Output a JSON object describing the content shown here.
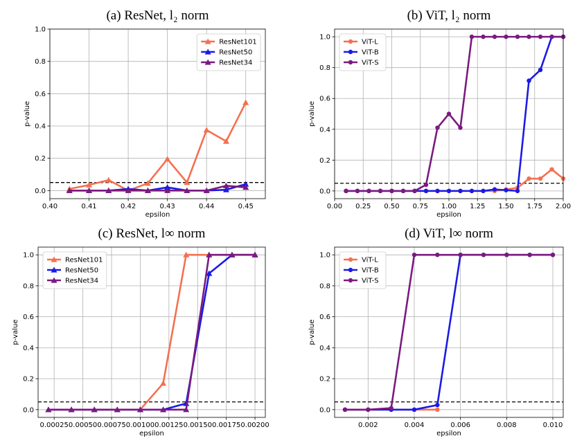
{
  "chart_data": [
    {
      "type": "line",
      "title": "(a) ResNet, l₂ norm",
      "xlabel": "epsilon",
      "ylabel": "p-value",
      "x": [
        0.405,
        0.41,
        0.415,
        0.42,
        0.425,
        0.43,
        0.435,
        0.44,
        0.445,
        0.45
      ],
      "series": [
        {
          "name": "ResNet101",
          "color": "#f4704f",
          "marker": "^",
          "values": [
            0.01,
            0.035,
            0.065,
            0.0,
            0.045,
            0.195,
            0.05,
            0.375,
            0.305,
            0.545
          ]
        },
        {
          "name": "ResNet50",
          "color": "#1a1ae6",
          "marker": "^",
          "values": [
            0,
            0,
            0,
            0.01,
            0,
            0.02,
            0,
            0,
            0.005,
            0.04
          ]
        },
        {
          "name": "ResNet34",
          "color": "#7a1a80",
          "marker": "^",
          "values": [
            0,
            0,
            0,
            0,
            0,
            0,
            0,
            0,
            0.03,
            0.02
          ]
        }
      ],
      "xlim": [
        0.4,
        0.455
      ],
      "xticks": [
        {
          "value": 0.4,
          "label": "0.40"
        },
        0.41,
        0.42,
        0.43,
        0.44,
        0.45
      ],
      "ylim": [
        -0.05,
        1.0
      ],
      "yticks": [
        {
          "value": 0,
          "label": "0.0"
        },
        0.2,
        0.4,
        0.6,
        0.8,
        {
          "value": 1,
          "label": "1.0"
        }
      ],
      "hline": 0.05,
      "grid": true,
      "legend": "upper right"
    },
    {
      "type": "line",
      "title": "(b) ViT, l₂ norm",
      "xlabel": "epsilon",
      "ylabel": "p-value",
      "x": [
        0.1,
        0.2,
        0.3,
        0.4,
        0.5,
        0.6,
        0.7,
        0.8,
        0.9,
        1.0,
        1.1,
        1.2,
        1.3,
        1.4,
        1.5,
        1.6,
        1.7,
        1.8,
        1.9,
        2.0
      ],
      "series": [
        {
          "name": "ViT-L",
          "color": "#f4704f",
          "marker": "o",
          "values": [
            0,
            0,
            0,
            0,
            0,
            0,
            0,
            0,
            0,
            0,
            0,
            0,
            0,
            0,
            0.01,
            0.02,
            0.08,
            0.08,
            0.14,
            0.08
          ]
        },
        {
          "name": "ViT-B",
          "color": "#1a1ae6",
          "marker": "o",
          "values": [
            0,
            0,
            0,
            0,
            0,
            0,
            0,
            0,
            0,
            0,
            0,
            0,
            0,
            0.01,
            0.005,
            0,
            0.715,
            0.785,
            1,
            1
          ]
        },
        {
          "name": "ViT-S",
          "color": "#7a1a80",
          "marker": "o",
          "values": [
            0,
            0,
            0,
            0,
            0,
            0,
            0,
            0.04,
            0.41,
            0.5,
            0.41,
            1,
            1,
            1,
            1,
            1,
            1,
            1,
            1,
            1
          ]
        }
      ],
      "xlim": [
        0,
        2
      ],
      "xticks": [
        {
          "value": 0,
          "label": "0.00"
        },
        0.25,
        {
          "value": 0.5,
          "label": "0.50"
        },
        0.75,
        {
          "value": 1,
          "label": "1.00"
        },
        1.25,
        {
          "value": 1.5,
          "label": "1.50"
        },
        1.75,
        {
          "value": 2,
          "label": "2.00"
        }
      ],
      "ylim": [
        -0.05,
        1.05
      ],
      "yticks": [
        {
          "value": 0,
          "label": "0.0"
        },
        0.2,
        0.4,
        0.6,
        0.8,
        {
          "value": 1,
          "label": "1.0"
        }
      ],
      "hline": 0.05,
      "grid": true,
      "legend": "upper left"
    },
    {
      "type": "line",
      "title": "(c) ResNet, l∞ norm",
      "xlabel": "epsilon",
      "ylabel": "p-value",
      "x": [
        0.0002,
        0.0004,
        0.0006,
        0.0008,
        0.001,
        0.0012,
        0.0014,
        0.0016,
        0.0018,
        0.002
      ],
      "series": [
        {
          "name": "ResNet101",
          "color": "#f4704f",
          "marker": "^",
          "values": [
            0,
            0,
            0,
            0,
            0,
            0.17,
            1,
            1,
            1,
            1
          ]
        },
        {
          "name": "ResNet50",
          "color": "#1a1ae6",
          "marker": "^",
          "values": [
            0,
            0,
            0,
            0,
            0,
            0,
            0.04,
            0.88,
            1,
            1
          ]
        },
        {
          "name": "ResNet34",
          "color": "#7a1a80",
          "marker": "^",
          "values": [
            0,
            0,
            0,
            0,
            0,
            0,
            0,
            1,
            1,
            1
          ]
        }
      ],
      "xlim": [
        0.00011,
        0.00209
      ],
      "xticks": [
        {
          "value": 0.00025,
          "label": "0.00025"
        },
        {
          "value": 0.0005,
          "label": "0.00050"
        },
        {
          "value": 0.00075,
          "label": "0.00075"
        },
        {
          "value": 0.001,
          "label": "0.00100"
        },
        {
          "value": 0.00125,
          "label": "0.00125"
        },
        {
          "value": 0.0015,
          "label": "0.00150"
        },
        {
          "value": 0.00175,
          "label": "0.00175"
        },
        {
          "value": 0.002,
          "label": "0.00200"
        }
      ],
      "ylim": [
        -0.05,
        1.05
      ],
      "yticks": [
        {
          "value": 0,
          "label": "0.0"
        },
        0.2,
        0.4,
        0.6,
        0.8,
        {
          "value": 1,
          "label": "1.0"
        }
      ],
      "hline": 0.05,
      "grid": true,
      "legend": "upper left"
    },
    {
      "type": "line",
      "title": "(d) ViT, l∞ norm",
      "xlabel": "epsilon",
      "ylabel": "p-value",
      "x": [
        0.001,
        0.002,
        0.003,
        0.004,
        0.005,
        0.006,
        0.007,
        0.008,
        0.009,
        0.01
      ],
      "series": [
        {
          "name": "ViT-L",
          "color": "#f4704f",
          "marker": "o",
          "values": [
            0,
            0,
            0,
            0,
            0,
            null,
            null,
            null,
            null,
            null
          ]
        },
        {
          "name": "ViT-B",
          "color": "#1a1ae6",
          "marker": "o",
          "values": [
            0,
            0,
            0,
            0,
            0.03,
            1,
            1,
            1,
            1,
            1
          ]
        },
        {
          "name": "ViT-S",
          "color": "#7a1a80",
          "marker": "o",
          "values": [
            0,
            0,
            0.01,
            1,
            1,
            1,
            1,
            1,
            1,
            1
          ]
        }
      ],
      "xlim": [
        0.00055,
        0.01045
      ],
      "xticks": [
        0.002,
        0.004,
        0.006,
        0.008,
        {
          "value": 0.01,
          "label": "0.010"
        }
      ],
      "ylim": [
        -0.05,
        1.05
      ],
      "yticks": [
        {
          "value": 0,
          "label": "0.0"
        },
        0.2,
        0.4,
        0.6,
        0.8,
        {
          "value": 1,
          "label": "1.0"
        }
      ],
      "hline": 0.05,
      "grid": true,
      "legend": "upper left"
    }
  ]
}
